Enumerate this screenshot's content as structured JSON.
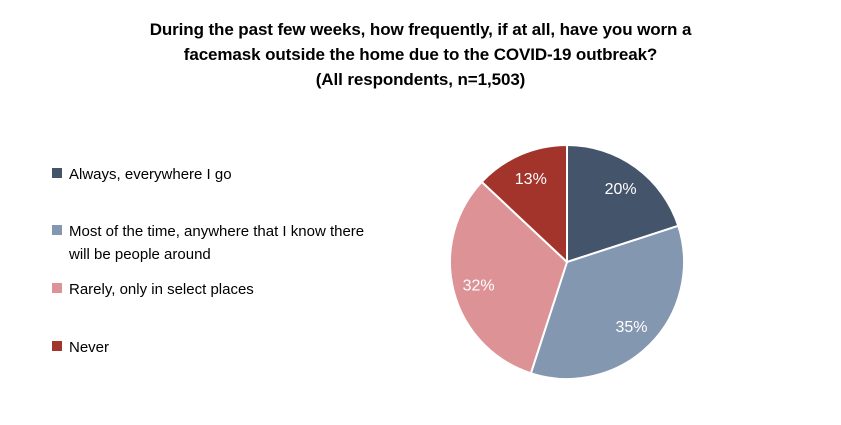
{
  "title": {
    "lines": [
      "During the past few weeks, how frequently, if at all, have you worn a",
      "facemask outside the home due to the COVID-19 outbreak?",
      "(All respondents, n=1,503)"
    ]
  },
  "chart_data": {
    "type": "pie",
    "title": "During the past few weeks, how frequently, if at all, have you worn a facemask outside the home due to the COVID-19 outbreak?",
    "subtitle": "(All respondents, n=1,503)",
    "sample_size_text": "n=1,503",
    "start_angle_deg": 0,
    "direction": "clockwise",
    "legend_position": "left",
    "data_label_color": "#FFFFFF",
    "background_color": "#FFFFFF",
    "separator_color": "#FFFFFF",
    "segments": [
      {
        "label": "Always, everywhere I go",
        "value": 20,
        "display": "20%",
        "color": "#44546A"
      },
      {
        "label": "Most of the time, anywhere that I know there will be people around",
        "value": 35,
        "display": "35%",
        "color": "#8497B0"
      },
      {
        "label": "Rarely, only in select places",
        "value": 32,
        "display": "32%",
        "color": "#DD9296"
      },
      {
        "label": "Never",
        "value": 13,
        "display": "13%",
        "color": "#A2342C"
      }
    ]
  }
}
